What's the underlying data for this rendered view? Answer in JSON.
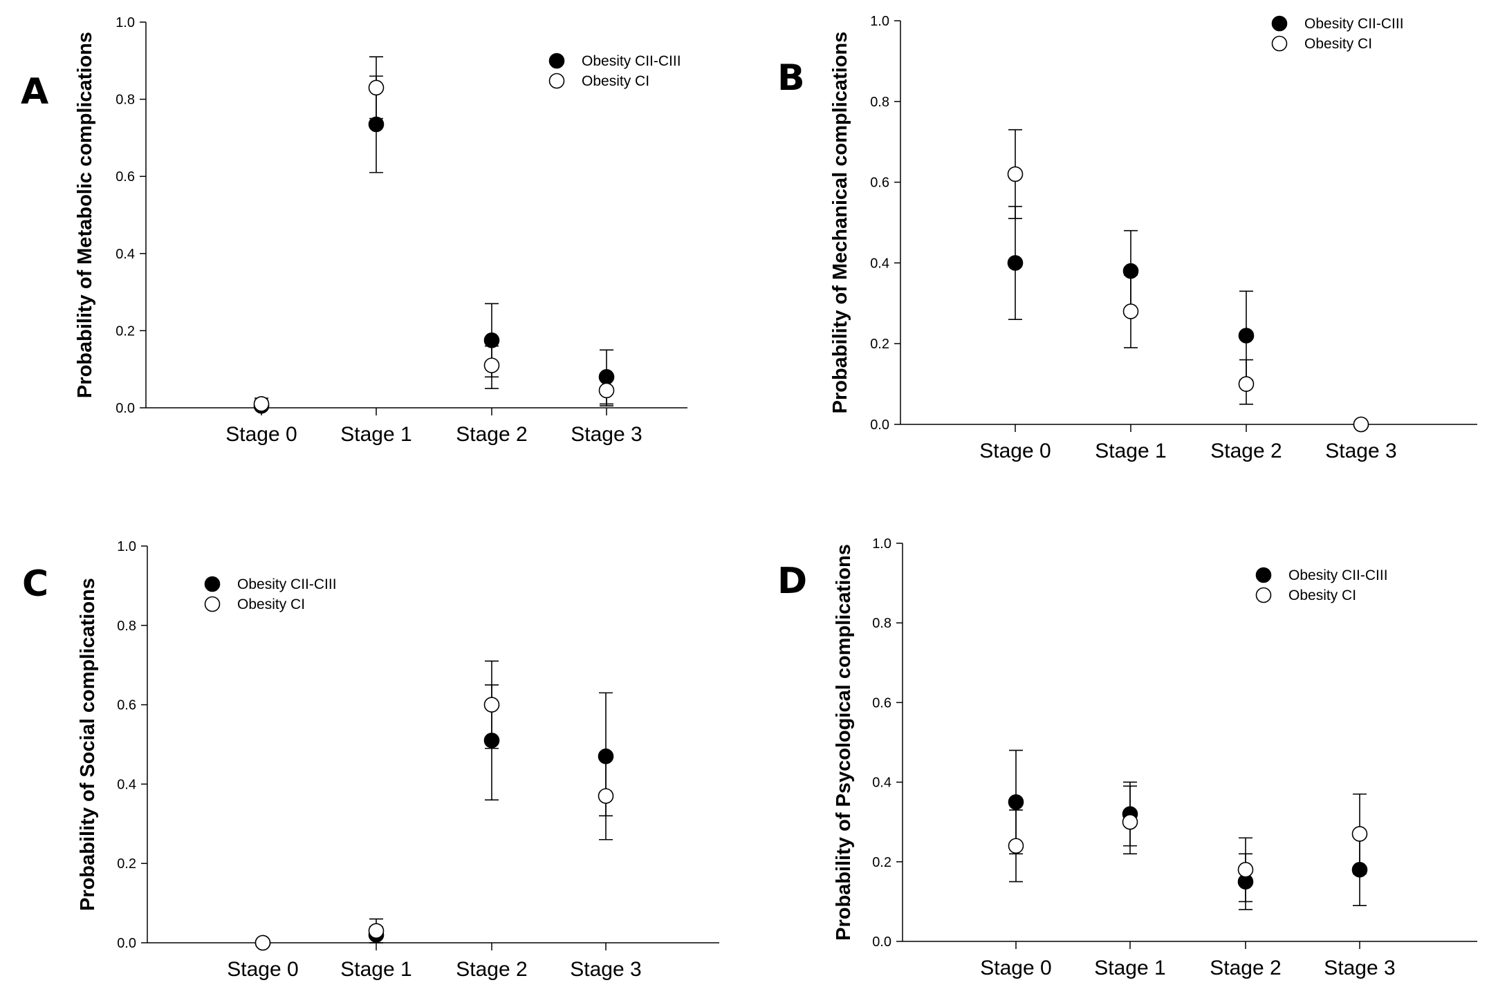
{
  "chart_data": [
    {
      "panel": "A",
      "type": "scatter",
      "ylabel": "Probability of Metabolic complications",
      "categories": [
        "Stage 0",
        "Stage 1",
        "Stage 2",
        "Stage 3"
      ],
      "ylim": [
        0,
        1
      ],
      "yticks": [
        "0.0",
        "0.2",
        "0.4",
        "0.6",
        "0.8",
        "1.0"
      ],
      "legend_position": "top-right",
      "series": [
        {
          "name": "Obesity CII-CIII",
          "marker": "filled",
          "values": [
            0.005,
            0.735,
            0.175,
            0.08
          ],
          "upper": [
            0.02,
            0.86,
            0.27,
            0.15
          ],
          "lower": [
            0.0,
            0.61,
            0.08,
            0.01
          ]
        },
        {
          "name": "Obesity CI",
          "marker": "open",
          "values": [
            0.01,
            0.83,
            0.11,
            0.045
          ],
          "upper": [
            0.025,
            0.91,
            0.16,
            0.08
          ],
          "lower": [
            0.0,
            0.75,
            0.05,
            0.005
          ]
        }
      ]
    },
    {
      "panel": "B",
      "type": "scatter",
      "ylabel": "Probability of Mechanical complications",
      "categories": [
        "Stage 0",
        "Stage 1",
        "Stage 2",
        "Stage 3"
      ],
      "ylim": [
        0,
        1
      ],
      "yticks": [
        "0.0",
        "0.2",
        "0.4",
        "0.6",
        "0.8",
        "1.0"
      ],
      "legend_position": "top-right",
      "series": [
        {
          "name": "Obesity CII-CIII",
          "marker": "filled",
          "values": [
            0.4,
            0.38,
            0.22,
            0.0
          ],
          "upper": [
            0.54,
            0.48,
            0.33,
            0.0
          ],
          "lower": [
            0.26,
            0.28,
            0.11,
            0.0
          ]
        },
        {
          "name": "Obesity CI",
          "marker": "open",
          "values": [
            0.62,
            0.28,
            0.1,
            0.0
          ],
          "upper": [
            0.73,
            0.37,
            0.16,
            0.0
          ],
          "lower": [
            0.51,
            0.19,
            0.05,
            0.0
          ]
        }
      ]
    },
    {
      "panel": "C",
      "type": "scatter",
      "ylabel": "Probability of Social complications",
      "categories": [
        "Stage 0",
        "Stage 1",
        "Stage 2",
        "Stage 3"
      ],
      "ylim": [
        0,
        1
      ],
      "yticks": [
        "0.0",
        "0.2",
        "0.4",
        "0.6",
        "0.8",
        "1.0"
      ],
      "legend_position": "top-left",
      "series": [
        {
          "name": "Obesity CII-CIII",
          "marker": "filled",
          "values": [
            0.0,
            0.02,
            0.51,
            0.47
          ],
          "upper": [
            0.0,
            0.04,
            0.65,
            0.63
          ],
          "lower": [
            0.0,
            0.0,
            0.36,
            0.32
          ]
        },
        {
          "name": "Obesity CI",
          "marker": "open",
          "values": [
            0.0,
            0.03,
            0.6,
            0.37
          ],
          "upper": [
            0.0,
            0.06,
            0.71,
            0.47
          ],
          "lower": [
            0.0,
            0.0,
            0.49,
            0.26
          ]
        }
      ]
    },
    {
      "panel": "D",
      "type": "scatter",
      "ylabel": "Probability of Psycological complications",
      "categories": [
        "Stage 0",
        "Stage 1",
        "Stage 2",
        "Stage 3"
      ],
      "ylim": [
        0,
        1
      ],
      "yticks": [
        "0.0",
        "0.2",
        "0.4",
        "0.6",
        "0.8",
        "1.0"
      ],
      "legend_position": "top-right",
      "series": [
        {
          "name": "Obesity CII-CIII",
          "marker": "filled",
          "values": [
            0.35,
            0.32,
            0.15,
            0.18
          ],
          "upper": [
            0.48,
            0.4,
            0.22,
            0.27
          ],
          "lower": [
            0.22,
            0.24,
            0.08,
            0.09
          ]
        },
        {
          "name": "Obesity CI",
          "marker": "open",
          "values": [
            0.24,
            0.3,
            0.18,
            0.27
          ],
          "upper": [
            0.33,
            0.39,
            0.26,
            0.37
          ],
          "lower": [
            0.15,
            0.22,
            0.1,
            0.17
          ]
        }
      ]
    }
  ]
}
